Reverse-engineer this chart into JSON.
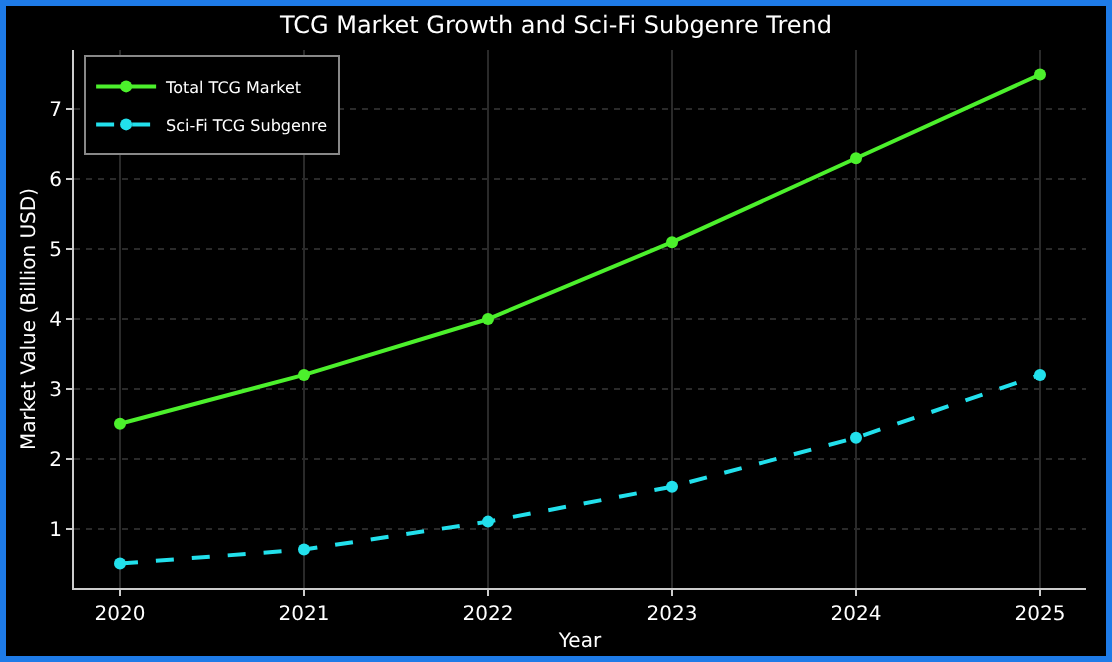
{
  "chart_data": {
    "type": "line",
    "title": "TCG Market Growth and Sci-Fi Subgenre Trend",
    "xlabel": "Year",
    "ylabel": "Market Value (Billion USD)",
    "x": [
      2020,
      2021,
      2022,
      2023,
      2024,
      2025
    ],
    "series": [
      {
        "name": "Total TCG Market",
        "color": "#4cf02c",
        "values": [
          2.5,
          3.2,
          4.0,
          5.1,
          6.3,
          7.5
        ],
        "line_style": "solid"
      },
      {
        "name": "Sci-Fi TCG Subgenre",
        "color": "#22e0ec",
        "values": [
          0.5,
          0.7,
          1.1,
          1.6,
          2.3,
          3.2
        ],
        "line_style": "dashed"
      }
    ],
    "xlim": [
      2019.75,
      2025.25
    ],
    "xticks": [
      2020,
      2021,
      2022,
      2023,
      2024,
      2025
    ],
    "ylim": [
      0.15,
      7.85
    ],
    "yticks": [
      1,
      2,
      3,
      4,
      5,
      6,
      7
    ],
    "grid": true,
    "legend": "top left",
    "marker": "circle"
  }
}
